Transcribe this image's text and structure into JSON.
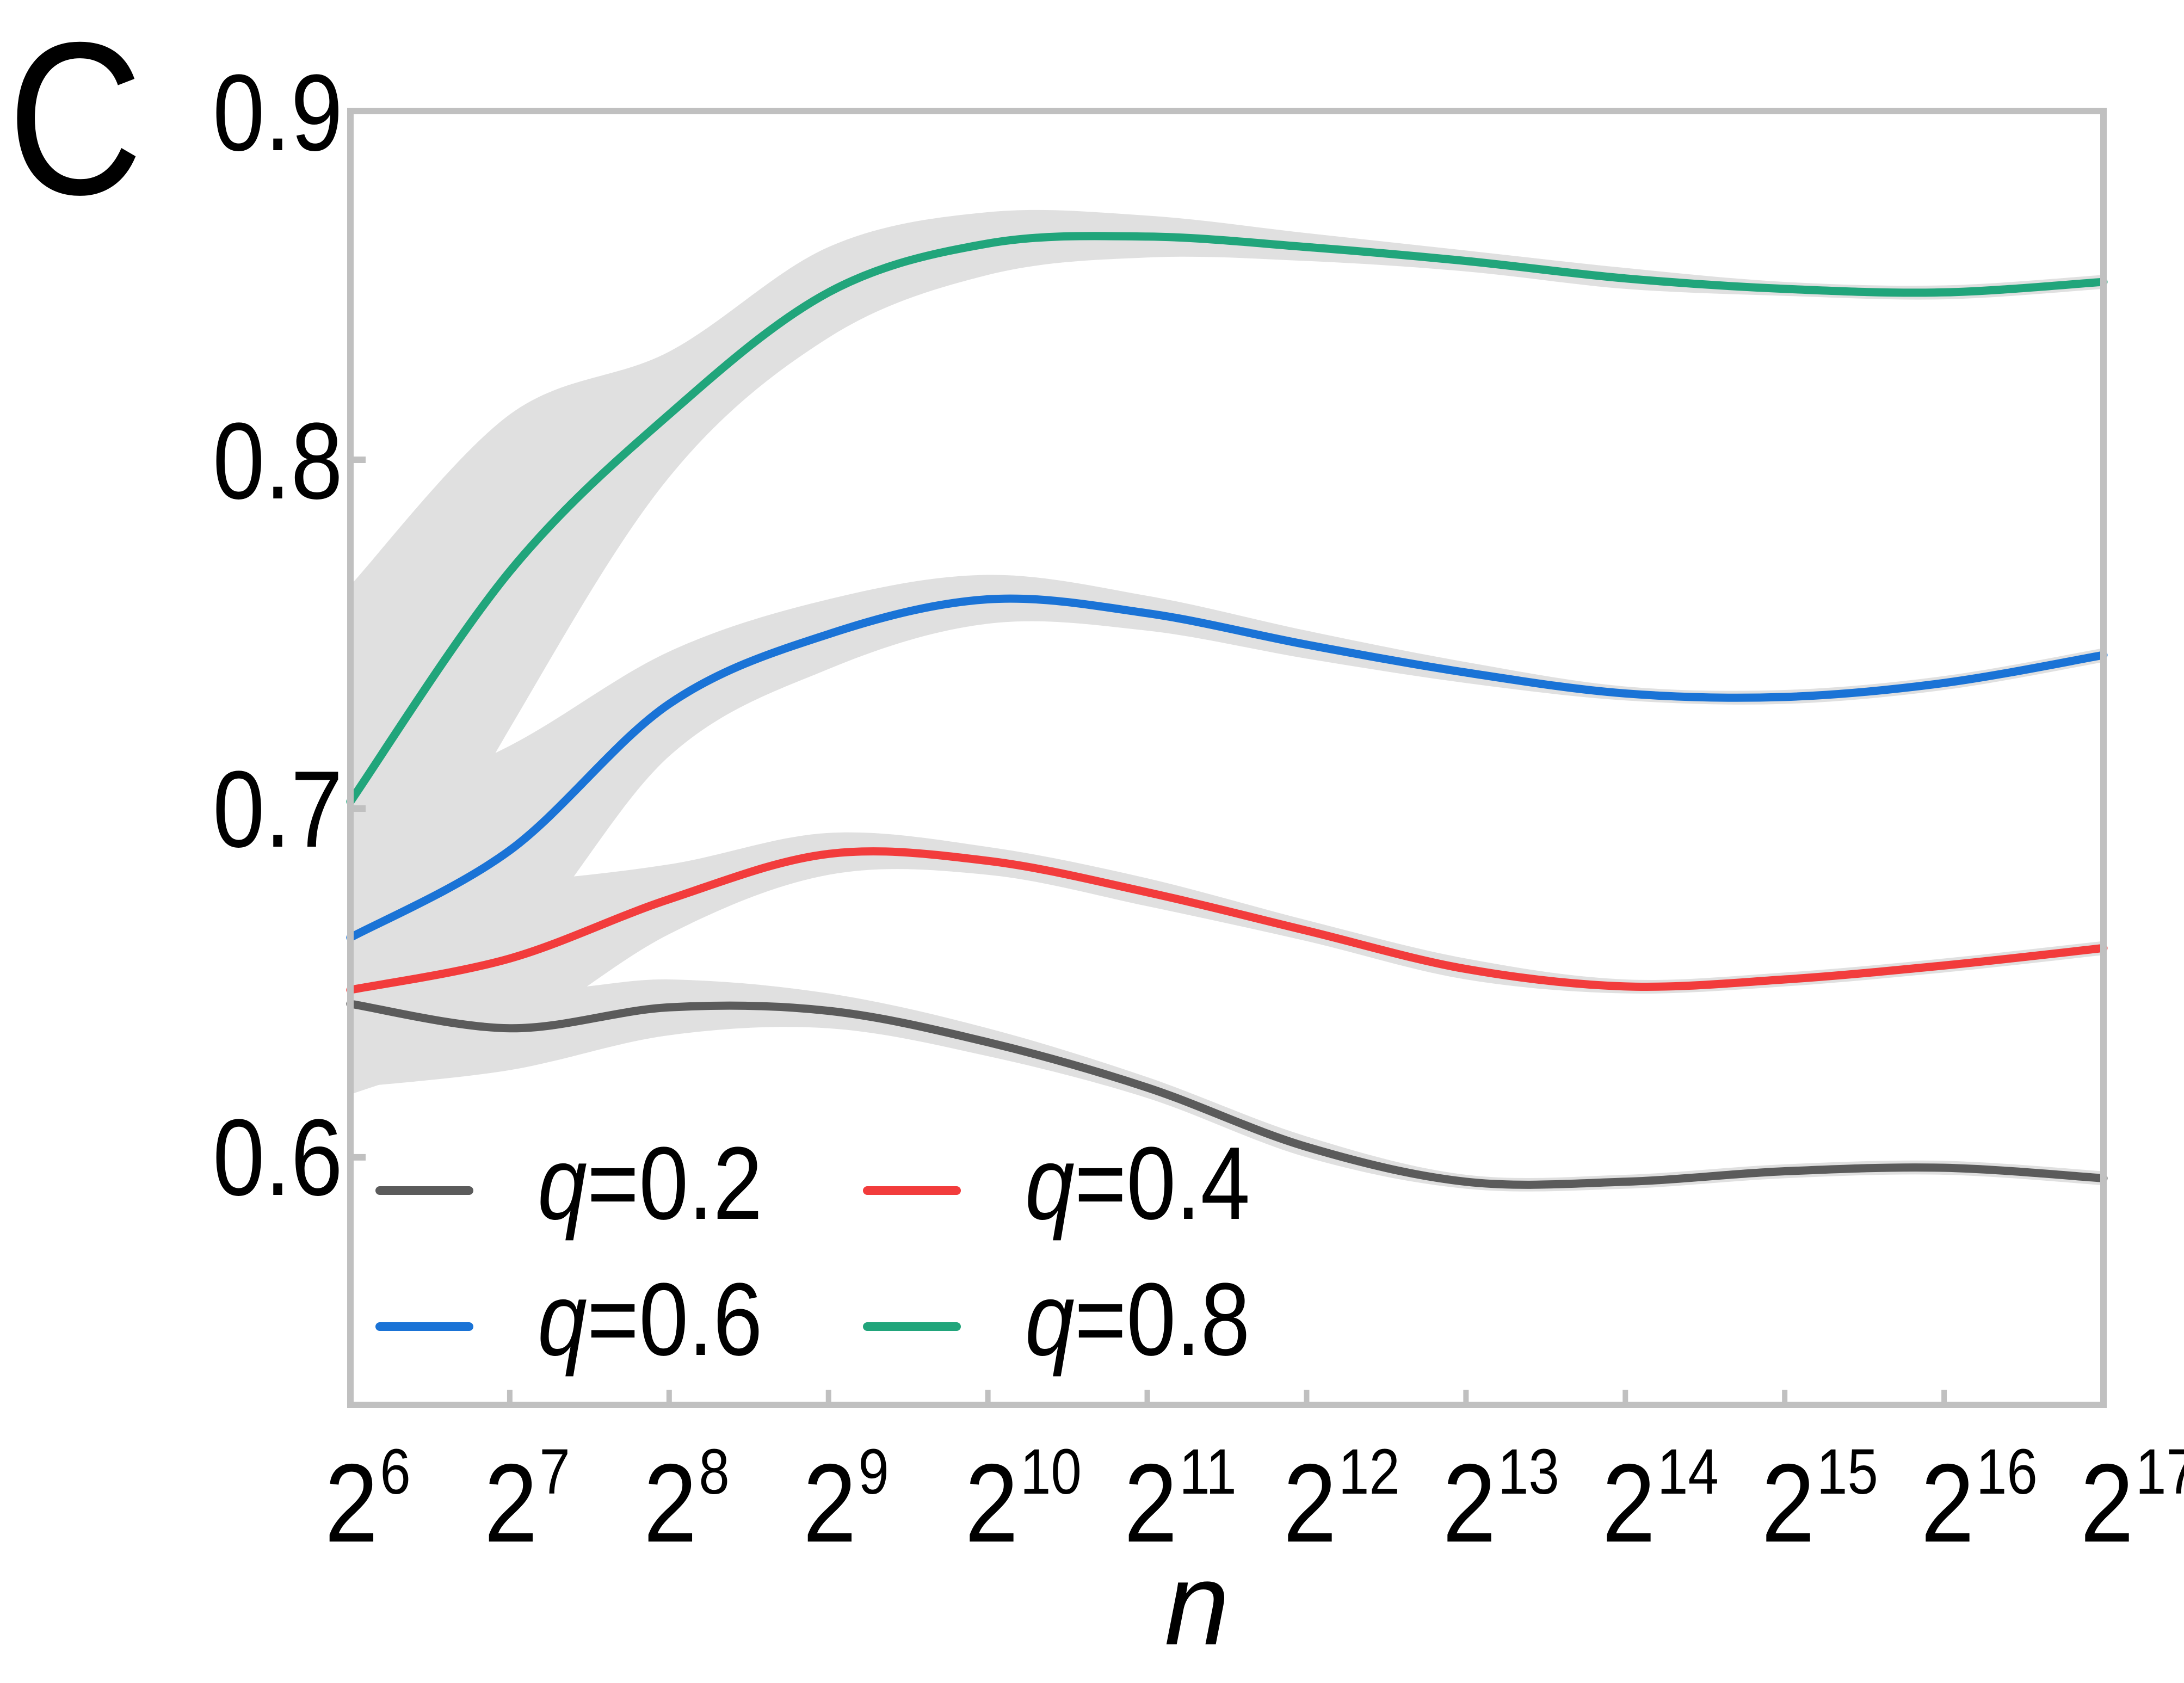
{
  "figure": {
    "panel_label": "C",
    "x_axis_label": "n",
    "legend": [
      {
        "var": "q",
        "label": "=0.2",
        "color": "#5b5b5b"
      },
      {
        "var": "q",
        "label": "=0.4",
        "color": "#f23c3c"
      },
      {
        "var": "q",
        "label": "=0.6",
        "color": "#1a73d6"
      },
      {
        "var": "q",
        "label": "=0.8",
        "color": "#21a57b"
      }
    ],
    "y_ticks": [
      "0.9",
      "0.8",
      "0.7",
      "0.6"
    ],
    "x_ticks": [
      {
        "base": "2",
        "exp": "6"
      },
      {
        "base": "2",
        "exp": "7"
      },
      {
        "base": "2",
        "exp": "8"
      },
      {
        "base": "2",
        "exp": "9"
      },
      {
        "base": "2",
        "exp": "10"
      },
      {
        "base": "2",
        "exp": "11"
      },
      {
        "base": "2",
        "exp": "12"
      },
      {
        "base": "2",
        "exp": "13"
      },
      {
        "base": "2",
        "exp": "14"
      },
      {
        "base": "2",
        "exp": "15"
      },
      {
        "base": "2",
        "exp": "16"
      },
      {
        "base": "2",
        "exp": "17"
      }
    ],
    "frame_color": "#c0c0c0",
    "band_color": "#e0e0e0"
  },
  "chart_data": {
    "type": "line",
    "title": "",
    "panel_label": "C",
    "xlabel": "n",
    "ylabel": "",
    "x_scale": "log2",
    "x": [
      64,
      128,
      256,
      512,
      1024,
      2048,
      4096,
      8192,
      16384,
      32768,
      65536,
      131072
    ],
    "x_exponents": [
      6,
      7,
      8,
      9,
      10,
      11,
      12,
      13,
      14,
      15,
      16,
      17
    ],
    "x_tick_labels": [
      "2^6",
      "2^7",
      "2^8",
      "2^9",
      "2^10",
      "2^11",
      "2^12",
      "2^13",
      "2^14",
      "2^15",
      "2^16",
      "2^17"
    ],
    "ylim": [
      0.529,
      0.9
    ],
    "y_ticks": [
      0.6,
      0.7,
      0.8,
      0.9
    ],
    "grid": false,
    "legend_position": "lower left (inside), 2 columns",
    "shaded_bands": "grey uncertainty band around each curve",
    "series": [
      {
        "name": "q=0.2",
        "color": "#5b5b5b",
        "values": [
          0.644,
          0.637,
          0.643,
          0.642,
          0.633,
          0.62,
          0.603,
          0.593,
          0.593,
          0.596,
          0.597,
          0.594
        ],
        "band_halfwidth": [
          0.024,
          0.012,
          0.008,
          0.005,
          0.004,
          0.003,
          0.003,
          0.002,
          0.002,
          0.002,
          0.002,
          0.002
        ]
      },
      {
        "name": "q=0.4",
        "color": "#f23c3c",
        "values": [
          0.648,
          0.657,
          0.674,
          0.687,
          0.685,
          0.676,
          0.665,
          0.654,
          0.649,
          0.651,
          0.655,
          0.66
        ],
        "band_halfwidth": [
          0.03,
          0.022,
          0.01,
          0.006,
          0.004,
          0.004,
          0.003,
          0.003,
          0.002,
          0.002,
          0.002,
          0.002
        ]
      },
      {
        "name": "q=0.6",
        "color": "#1a73d6",
        "values": [
          0.663,
          0.688,
          0.73,
          0.75,
          0.76,
          0.756,
          0.747,
          0.739,
          0.733,
          0.732,
          0.736,
          0.744
        ],
        "band_halfwidth": [
          0.035,
          0.03,
          0.015,
          0.01,
          0.007,
          0.005,
          0.004,
          0.003,
          0.002,
          0.002,
          0.002,
          0.002
        ]
      },
      {
        "name": "q=0.8",
        "color": "#21a57b",
        "values": [
          0.702,
          0.768,
          0.813,
          0.848,
          0.862,
          0.864,
          0.861,
          0.857,
          0.852,
          0.849,
          0.848,
          0.851
        ],
        "band_halfwidth": [
          0.062,
          0.045,
          0.018,
          0.013,
          0.009,
          0.006,
          0.004,
          0.003,
          0.003,
          0.002,
          0.002,
          0.002
        ]
      }
    ]
  }
}
